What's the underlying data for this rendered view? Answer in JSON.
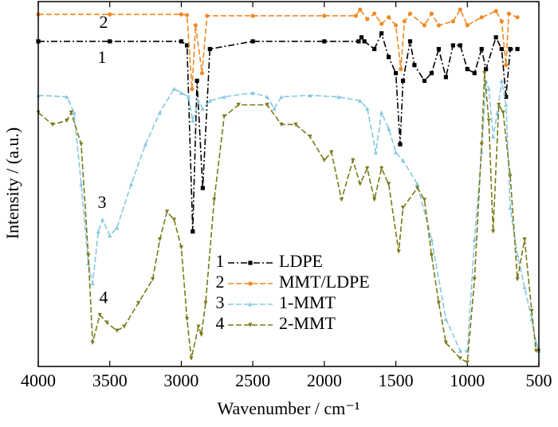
{
  "chart_data": {
    "type": "line",
    "x_label": "Wavenumber / cm⁻¹",
    "y_label": "Intensity / (a.u.)",
    "xlim": [
      4000,
      500
    ],
    "xticks": [
      4000,
      3500,
      3000,
      2500,
      2000,
      1500,
      1000,
      500
    ],
    "ylim": [
      0,
      100
    ],
    "legend": "lower center",
    "series": [
      {
        "name": "LDPE",
        "number": "1",
        "color": "#000000",
        "linestyle": "dashdot",
        "marker": "square",
        "x": [
          4000,
          3500,
          3000,
          2960,
          2920,
          2890,
          2850,
          2800,
          2500,
          2000,
          1760,
          1740,
          1720,
          1650,
          1600,
          1550,
          1500,
          1470,
          1450,
          1400,
          1370,
          1300,
          1250,
          1200,
          1150,
          1100,
          1050,
          1000,
          950,
          900,
          870,
          800,
          760,
          730,
          700,
          650
        ],
        "values": [
          89.1,
          89.1,
          89.1,
          88,
          37,
          78.3,
          48.9,
          87,
          89.1,
          89.1,
          89.1,
          90.2,
          89.1,
          87,
          91.3,
          84.8,
          80.4,
          60.9,
          78.3,
          89.1,
          82.6,
          78.3,
          80.4,
          87,
          79.3,
          88,
          88,
          81.5,
          80.4,
          87,
          81.5,
          90.2,
          87,
          73.9,
          87,
          87
        ]
      },
      {
        "name": "MMT/LDPE",
        "number": "2",
        "color": "#f08a24",
        "linestyle": "dashed",
        "marker": "circle",
        "x": [
          4000,
          3500,
          3000,
          2960,
          2925,
          2900,
          2855,
          2820,
          2500,
          2000,
          1780,
          1750,
          1700,
          1650,
          1600,
          1550,
          1500,
          1465,
          1440,
          1400,
          1300,
          1250,
          1200,
          1100,
          1050,
          1000,
          900,
          800,
          760,
          730,
          710,
          650
        ],
        "values": [
          96.5,
          96.5,
          96.5,
          96.3,
          76,
          93.5,
          80.4,
          96.1,
          96.1,
          96.1,
          96.1,
          97.8,
          95.2,
          96.7,
          93.9,
          95.7,
          93.5,
          81.5,
          94.6,
          96.7,
          93.5,
          96.7,
          93.5,
          94.6,
          97.8,
          93.5,
          95.7,
          97.4,
          94.6,
          82.6,
          96.7,
          95.7
        ]
      },
      {
        "name": "1-MMT",
        "number": "3",
        "color": "#86c8e0",
        "linestyle": "dashed",
        "marker": "triangle-up",
        "x": [
          4000,
          3800,
          3750,
          3700,
          3650,
          3620,
          3580,
          3550,
          3500,
          3450,
          3350,
          3250,
          3150,
          3050,
          3000,
          2950,
          2920,
          2880,
          2850,
          2800,
          2700,
          2500,
          2400,
          2350,
          2300,
          2100,
          1900,
          1750,
          1700,
          1640,
          1600,
          1550,
          1500,
          1450,
          1350,
          1250,
          1150,
          1050,
          1000,
          950,
          900,
          870,
          850,
          820,
          790,
          760,
          730,
          700,
          650,
          600,
          550,
          520,
          500
        ],
        "values": [
          74.3,
          73.9,
          69.6,
          50,
          28.3,
          22.8,
          37,
          40.2,
          35.9,
          38,
          50,
          60.9,
          69.6,
          76.1,
          75,
          73.9,
          67.4,
          72.8,
          70.7,
          72.8,
          73.9,
          75,
          73.9,
          70.7,
          73.9,
          74.3,
          73.9,
          72.8,
          70.7,
          58.7,
          69.6,
          65.2,
          58.7,
          56.5,
          50,
          34.8,
          13,
          4.3,
          4.3,
          34.8,
          58.7,
          78.3,
          76.1,
          63,
          69.6,
          78.3,
          71.7,
          43.5,
          30.4,
          21.7,
          13,
          6.5,
          4.3
        ]
      },
      {
        "name": "2-MMT",
        "number": "4",
        "color": "#7a7a1a",
        "linestyle": "dashed",
        "marker": "triangle-down",
        "x": [
          4000,
          3900,
          3800,
          3770,
          3700,
          3650,
          3620,
          3570,
          3520,
          3450,
          3400,
          3300,
          3200,
          3150,
          3100,
          3050,
          3000,
          2960,
          2930,
          2880,
          2860,
          2830,
          2770,
          2700,
          2600,
          2400,
          2300,
          2200,
          2100,
          2000,
          1950,
          1880,
          1800,
          1750,
          1700,
          1650,
          1600,
          1550,
          1480,
          1450,
          1350,
          1300,
          1250,
          1200,
          1150,
          1050,
          1000,
          950,
          900,
          880,
          850,
          820,
          780,
          750,
          700,
          650,
          600,
          550,
          520,
          500
        ],
        "values": [
          69.6,
          66.3,
          67.4,
          69.6,
          60.9,
          30.4,
          6.5,
          14.1,
          12,
          9.8,
          10.9,
          17.4,
          23.9,
          34.8,
          42.4,
          40.2,
          32.6,
          13,
          2.2,
          10.9,
          8.7,
          17.4,
          45.7,
          68.5,
          71.7,
          71.7,
          66.3,
          66.3,
          63,
          56.5,
          58.7,
          45.7,
          56.5,
          50,
          54.3,
          45.7,
          54.3,
          50,
          31.5,
          43.5,
          48.9,
          45.7,
          30.4,
          17.4,
          6.5,
          2.2,
          1.1,
          23.9,
          60.9,
          80.4,
          67.4,
          37,
          71.7,
          69.6,
          52.2,
          23.9,
          34.8,
          15.2,
          4.3,
          4.3
        ]
      }
    ],
    "annotations": [
      {
        "text": "2",
        "x": 3543,
        "y": 93.9
      },
      {
        "text": "1",
        "x": 3554,
        "y": 84.3
      },
      {
        "text": "3",
        "x": 3554,
        "y": 44.6
      },
      {
        "text": "4",
        "x": 3543,
        "y": 18.5
      }
    ]
  }
}
